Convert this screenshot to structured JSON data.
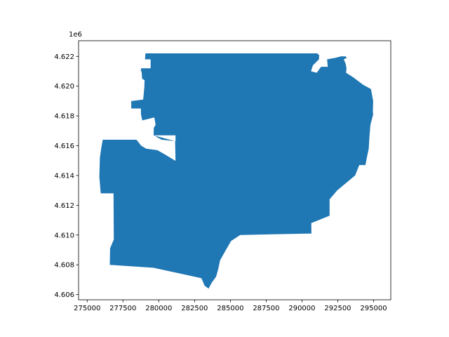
{
  "chart_data": {
    "type": "map",
    "title": "",
    "xlabel": "",
    "ylabel": "",
    "y_offset_label": "1e6",
    "xlim": [
      274400,
      296200
    ],
    "ylim": [
      4.60565,
      4.62305
    ],
    "x_ticks": [
      {
        "value": 275000,
        "label": "275000"
      },
      {
        "value": 277500,
        "label": "277500"
      },
      {
        "value": 280000,
        "label": "280000"
      },
      {
        "value": 282500,
        "label": "282500"
      },
      {
        "value": 285000,
        "label": "285000"
      },
      {
        "value": 287500,
        "label": "287500"
      },
      {
        "value": 290000,
        "label": "290000"
      },
      {
        "value": 292500,
        "label": "292500"
      },
      {
        "value": 295000,
        "label": "295000"
      }
    ],
    "y_ticks": [
      {
        "value": 4.606,
        "label": "4.606"
      },
      {
        "value": 4.608,
        "label": "4.608"
      },
      {
        "value": 4.61,
        "label": "4.610"
      },
      {
        "value": 4.612,
        "label": "4.612"
      },
      {
        "value": 4.614,
        "label": "4.614"
      },
      {
        "value": 4.616,
        "label": "4.616"
      },
      {
        "value": 4.618,
        "label": "4.618"
      },
      {
        "value": 4.62,
        "label": "4.620"
      },
      {
        "value": 4.622,
        "label": "4.622"
      }
    ],
    "fill_color": "#1f77b4",
    "grid": false,
    "polygon": [
      [
        276580,
        4.608
      ],
      [
        276600,
        4.6091
      ],
      [
        276860,
        4.6097
      ],
      [
        276840,
        4.6128
      ],
      [
        275950,
        4.6128
      ],
      [
        275850,
        4.6139
      ],
      [
        275890,
        4.6152
      ],
      [
        275990,
        4.6159
      ],
      [
        276090,
        4.6164
      ],
      [
        278440,
        4.6164
      ],
      [
        278770,
        4.616
      ],
      [
        279120,
        4.6158
      ],
      [
        279900,
        4.6157
      ],
      [
        280450,
        4.6154
      ],
      [
        281140,
        4.615
      ],
      [
        281170,
        4.615
      ],
      [
        281140,
        4.6163
      ],
      [
        279640,
        4.6167
      ],
      [
        279650,
        4.6172
      ],
      [
        279780,
        4.6174
      ],
      [
        279690,
        4.6179
      ],
      [
        278850,
        4.6177
      ],
      [
        278760,
        4.6181
      ],
      [
        278750,
        4.6185
      ],
      [
        278080,
        4.6185
      ],
      [
        278080,
        4.619
      ],
      [
        278130,
        4.619
      ],
      [
        278910,
        4.6191
      ],
      [
        278990,
        4.6199
      ],
      [
        279010,
        4.6204
      ],
      [
        278840,
        4.6205
      ],
      [
        278800,
        4.621
      ],
      [
        278740,
        4.621
      ],
      [
        278770,
        4.6212
      ],
      [
        279430,
        4.6212
      ],
      [
        279430,
        4.6218
      ],
      [
        279040,
        4.6218
      ],
      [
        279060,
        4.6221
      ],
      [
        279080,
        4.6222
      ],
      [
        291040,
        4.6222
      ],
      [
        291200,
        4.6221
      ],
      [
        291190,
        4.6218
      ],
      [
        290760,
        4.6214
      ],
      [
        290630,
        4.621
      ],
      [
        291030,
        4.6209
      ],
      [
        291330,
        4.6213
      ],
      [
        291800,
        4.6213
      ],
      [
        291750,
        4.6218
      ],
      [
        292330,
        4.6219
      ],
      [
        292730,
        4.622
      ],
      [
        293030,
        4.622
      ],
      [
        293140,
        4.6219
      ],
      [
        292920,
        4.6218
      ],
      [
        293050,
        4.6215
      ],
      [
        293110,
        4.6212
      ],
      [
        293080,
        4.6209
      ],
      [
        293570,
        4.6206
      ],
      [
        294260,
        4.6201
      ],
      [
        294820,
        4.6198
      ],
      [
        294970,
        4.619
      ],
      [
        294950,
        4.6183
      ],
      [
        294970,
        4.6181
      ],
      [
        294780,
        4.6174
      ],
      [
        294710,
        4.6166
      ],
      [
        294660,
        4.6158
      ],
      [
        294530,
        4.6152
      ],
      [
        294430,
        4.6147
      ],
      [
        294000,
        4.6147
      ],
      [
        293710,
        4.614
      ],
      [
        292460,
        4.613
      ],
      [
        291930,
        4.6124
      ],
      [
        291930,
        4.6113
      ],
      [
        290650,
        4.6108
      ],
      [
        290660,
        4.6101
      ],
      [
        285680,
        4.61
      ],
      [
        285050,
        4.6096
      ],
      [
        284690,
        4.609
      ],
      [
        284280,
        4.6083
      ],
      [
        284150,
        4.6077
      ],
      [
        284000,
        4.6072
      ],
      [
        283700,
        4.6068
      ],
      [
        283480,
        4.6064
      ],
      [
        283200,
        4.6066
      ],
      [
        282980,
        4.6071
      ],
      [
        279620,
        4.6078
      ],
      [
        276580,
        4.608
      ]
    ],
    "holes": [
      [
        [
          281170,
          4.6163
        ],
        [
          280200,
          4.6164
        ],
        [
          279820,
          4.6166
        ],
        [
          279740,
          4.6167
        ],
        [
          281170,
          4.6167
        ],
        [
          281170,
          4.6163
        ]
      ]
    ]
  }
}
